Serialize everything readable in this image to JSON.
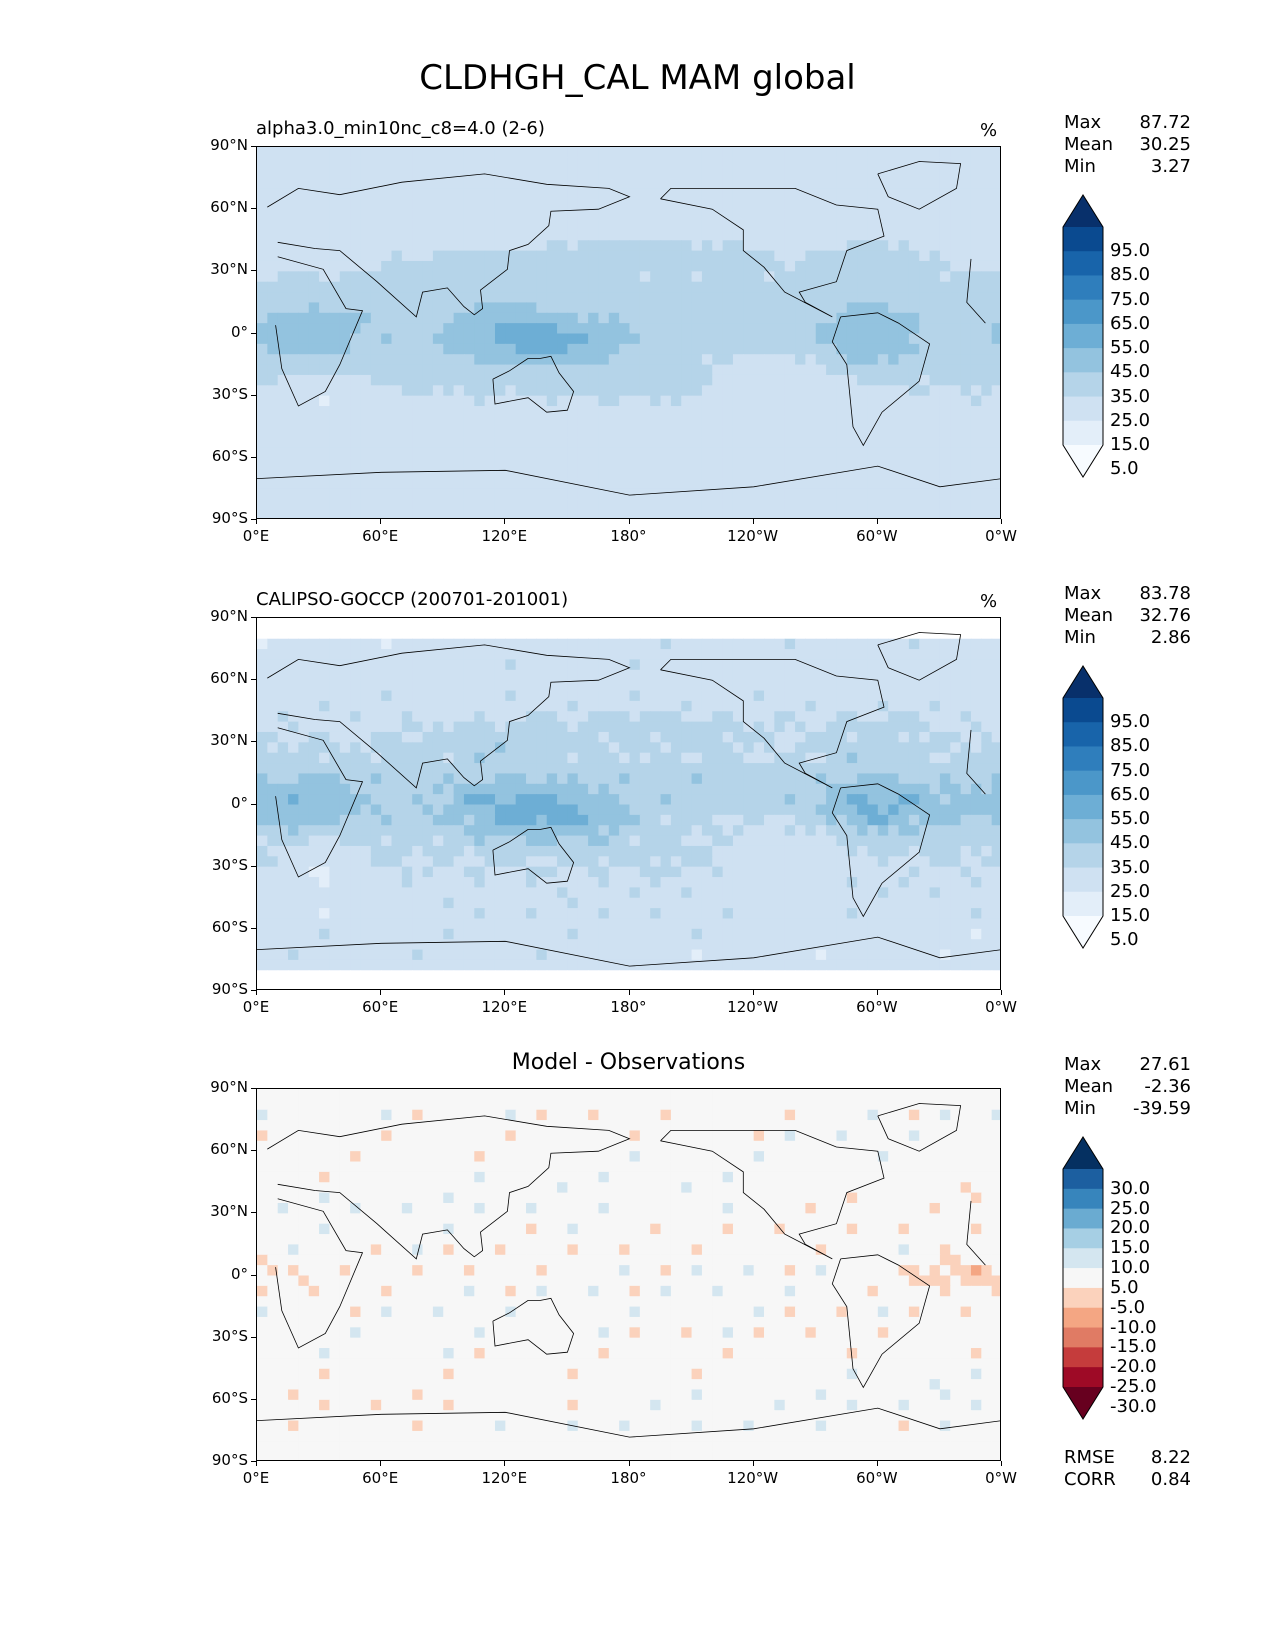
{
  "main_title": "CLDHGH_CAL MAM global",
  "units": "%",
  "axis": {
    "lat_labels": [
      "90°N",
      "60°N",
      "30°N",
      "0°",
      "30°S",
      "60°S",
      "90°S"
    ],
    "lon_labels": [
      "0°E",
      "60°E",
      "120°E",
      "180°",
      "120°W",
      "60°W",
      "0°W"
    ]
  },
  "colors": {
    "blues": [
      "#f7fbff",
      "#e3eef9",
      "#cfe1f2",
      "#b5d4e9",
      "#93c3df",
      "#6daed5",
      "#4b97c9",
      "#2f7ebc",
      "#1864aa",
      "#0a4a90",
      "#08306b"
    ],
    "rdbu": [
      "#67001f",
      "#9e0a26",
      "#c53c3c",
      "#e07b64",
      "#f4a683",
      "#fbd2bc",
      "#f7f7f7",
      "#d4e6f0",
      "#a6cfe4",
      "#6aabd1",
      "#3785bc",
      "#1c5fa0",
      "#053061"
    ],
    "coast": "#000000"
  },
  "panels": [
    {
      "title": "alpha3.0_min10nc_c8=4.0 (2-6)",
      "units": "%",
      "stats": {
        "max_label": "Max",
        "max": "87.72",
        "mean_label": "Mean",
        "mean": "30.25",
        "min_label": "Min",
        "min": "3.27"
      },
      "colorbar": {
        "labels": [
          "95.0",
          "85.0",
          "75.0",
          "65.0",
          "55.0",
          "45.0",
          "35.0",
          "25.0",
          "15.0",
          "5.0"
        ]
      }
    },
    {
      "title": "CALIPSO-GOCCP (200701-201001)",
      "units": "%",
      "stats": {
        "max_label": "Max",
        "max": "83.78",
        "mean_label": "Mean",
        "mean": "32.76",
        "min_label": "Min",
        "min": "2.86"
      },
      "colorbar": {
        "labels": [
          "95.0",
          "85.0",
          "75.0",
          "65.0",
          "55.0",
          "45.0",
          "35.0",
          "25.0",
          "15.0",
          "5.0"
        ]
      }
    },
    {
      "title": "Model - Observations",
      "stats": {
        "max_label": "Max",
        "max": "27.61",
        "mean_label": "Mean",
        "mean": "-2.36",
        "min_label": "Min",
        "min": "-39.59"
      },
      "colorbar": {
        "labels": [
          "30.0",
          "25.0",
          "20.0",
          "15.0",
          "10.0",
          "5.0",
          "-5.0",
          "-10.0",
          "-15.0",
          "-20.0",
          "-25.0",
          "-30.0"
        ]
      },
      "footer": {
        "rmse_label": "RMSE",
        "rmse": "8.22",
        "corr_label": "CORR",
        "corr": "0.84"
      }
    }
  ],
  "chart_data": [
    {
      "type": "heatmap",
      "title": "alpha3.0_min10nc_c8=4.0 (2-6)",
      "units": "%",
      "x_range": [
        0,
        360
      ],
      "y_range": [
        -90,
        90
      ],
      "levels": [
        5,
        15,
        25,
        35,
        45,
        55,
        65,
        75,
        85,
        95
      ],
      "stats": {
        "max": 87.72,
        "mean": 30.25,
        "min": 3.27
      }
    },
    {
      "type": "heatmap",
      "title": "CALIPSO-GOCCP (200701-201001)",
      "units": "%",
      "x_range": [
        0,
        360
      ],
      "y_range": [
        -90,
        90
      ],
      "levels": [
        5,
        15,
        25,
        35,
        45,
        55,
        65,
        75,
        85,
        95
      ],
      "stats": {
        "max": 83.78,
        "mean": 32.76,
        "min": 2.86
      }
    },
    {
      "type": "heatmap",
      "title": "Model - Observations",
      "x_range": [
        0,
        360
      ],
      "y_range": [
        -90,
        90
      ],
      "levels": [
        -30,
        -25,
        -20,
        -15,
        -10,
        -5,
        5,
        10,
        15,
        20,
        25,
        30
      ],
      "stats": {
        "max": 27.61,
        "mean": -2.36,
        "min": -39.59,
        "rmse": 8.22,
        "corr": 0.84
      }
    }
  ]
}
